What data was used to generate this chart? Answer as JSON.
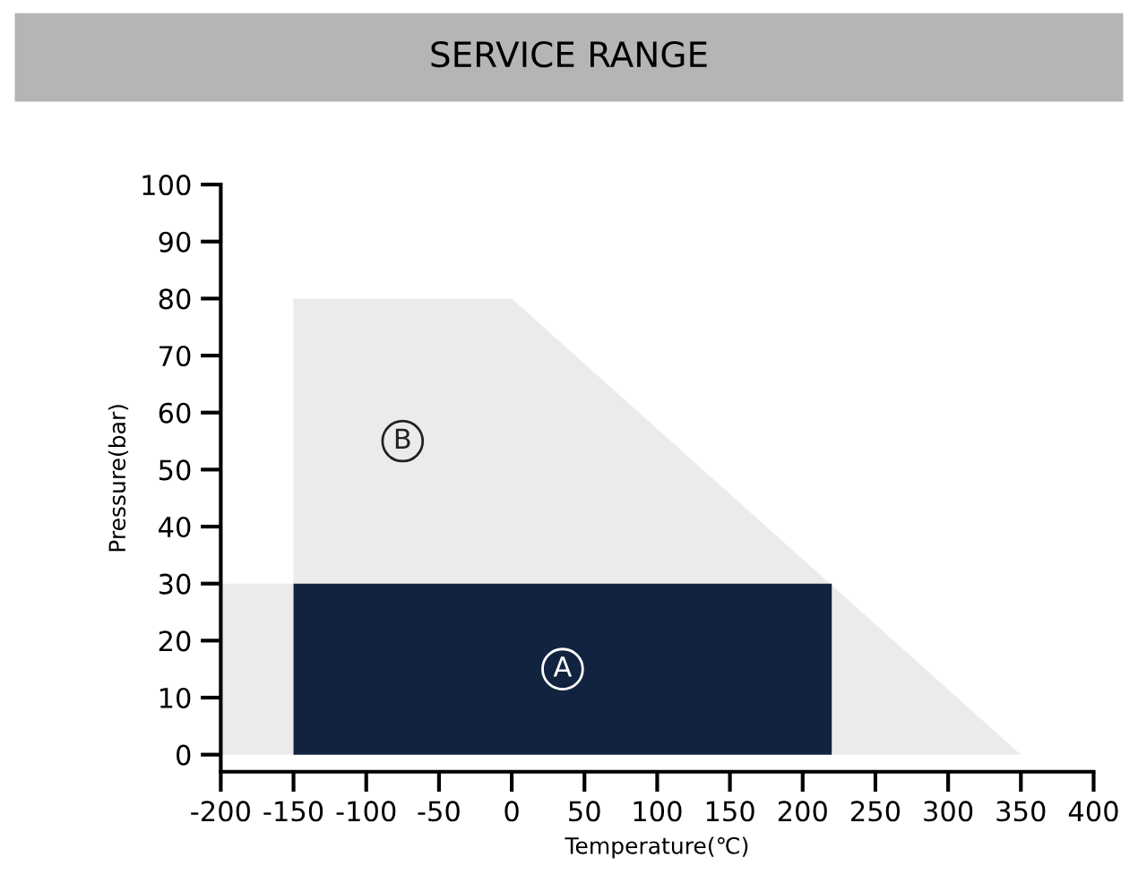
{
  "chart_data": {
    "type": "area",
    "title": "SERVICE RANGE",
    "xlabel": "Temperature(℃)",
    "ylabel": "Pressure(bar)",
    "series": [
      {
        "name": "B",
        "x": [
          -200,
          -150,
          -150,
          0,
          350
        ],
        "values": [
          30,
          30,
          80,
          80,
          0
        ],
        "color": "#ebebeb"
      },
      {
        "name": "A",
        "x": [
          -150,
          220
        ],
        "values": [
          30,
          30
        ],
        "color": "#12233f"
      }
    ],
    "xlim": [
      -200,
      400
    ],
    "ylim": [
      -3,
      100
    ],
    "xticks": [
      -200,
      -150,
      -100,
      -50,
      0,
      50,
      100,
      150,
      200,
      250,
      300,
      350,
      400
    ],
    "yticks": [
      0,
      10,
      20,
      30,
      40,
      50,
      60,
      70,
      80,
      90,
      100
    ],
    "grid": false,
    "legend": false
  }
}
